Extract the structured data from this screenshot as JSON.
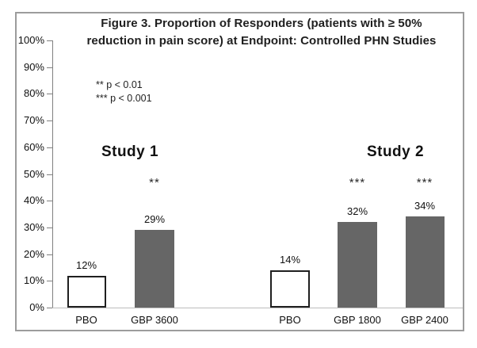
{
  "figure": {
    "title_lines": [
      "Figure 3. Proportion of Responders (patients with ≥ 50%",
      "reduction in pain score) at Endpoint: Controlled PHN Studies"
    ],
    "notes": [
      "** p < 0.01",
      "*** p < 0.001"
    ]
  },
  "chart_data": {
    "type": "bar",
    "title": "Figure 3. Proportion of Responders (patients with ≥ 50% reduction in pain score) at Endpoint: Controlled PHN Studies",
    "xlabel": "",
    "ylabel": "",
    "ylim": [
      0,
      100
    ],
    "ytick_labels": [
      "0%",
      "10%",
      "20%",
      "30%",
      "40%",
      "50%",
      "60%",
      "70%",
      "80%",
      "90%",
      "100%"
    ],
    "grid": false,
    "legend_position": "none",
    "groups": [
      {
        "name": "Study 1",
        "bars": [
          {
            "label": "PBO",
            "value": 12,
            "display": "12%",
            "fill": "light",
            "significance": ""
          },
          {
            "label": "GBP 3600",
            "value": 29,
            "display": "29%",
            "fill": "dark",
            "significance": "**"
          }
        ]
      },
      {
        "name": "Study 2",
        "bars": [
          {
            "label": "PBO",
            "value": 14,
            "display": "14%",
            "fill": "light",
            "significance": ""
          },
          {
            "label": "GBP 1800",
            "value": 32,
            "display": "32%",
            "fill": "dark",
            "significance": "***"
          },
          {
            "label": "GBP 2400",
            "value": 34,
            "display": "34%",
            "fill": "dark",
            "significance": "***"
          }
        ]
      }
    ],
    "significance_legend": [
      {
        "symbol": "**",
        "meaning": "p < 0.01"
      },
      {
        "symbol": "***",
        "meaning": "p < 0.001"
      }
    ],
    "colors": {
      "bar_dark": "#666666",
      "bar_light": "#ffffff",
      "bar_border": "#1f1f1f",
      "axis": "#808080",
      "baseline": "#bcbcbc",
      "frame_border": "#9c9c9c",
      "text": "#1f1f1f"
    }
  }
}
